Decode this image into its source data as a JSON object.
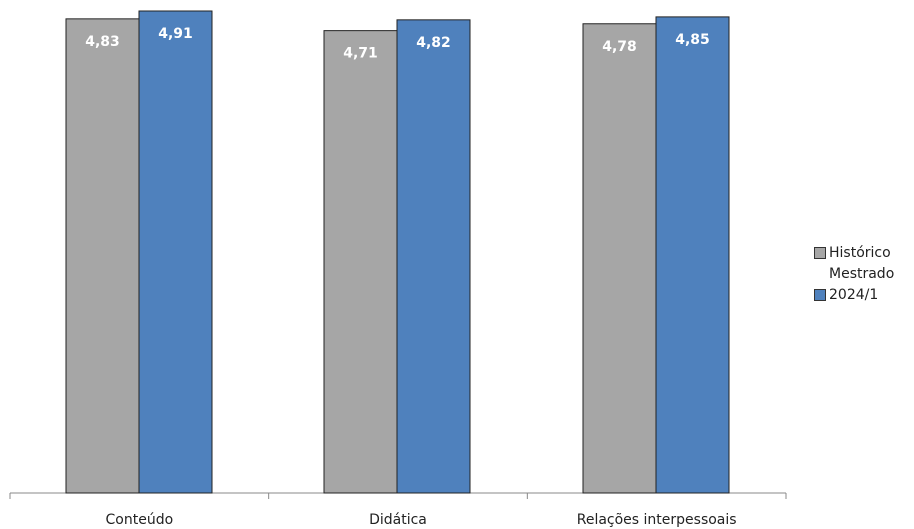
{
  "chart_data": {
    "type": "bar",
    "categories": [
      "Conteúdo",
      "Didática",
      "Relações interpessoais"
    ],
    "series": [
      {
        "name": "Histórico Mestrado",
        "color": "#a6a6a6",
        "values": [
          4.83,
          4.71,
          4.78
        ],
        "labels": [
          "4,83",
          "4,71",
          "4,78"
        ]
      },
      {
        "name": "2024/1",
        "color": "#4f81bd",
        "values": [
          4.91,
          4.82,
          4.85
        ],
        "labels": [
          "4,91",
          "4,82",
          "4,85"
        ]
      }
    ],
    "title": "",
    "xlabel": "",
    "ylabel": "",
    "ylim": [
      0,
      5
    ],
    "grid": false,
    "legend": "right"
  }
}
